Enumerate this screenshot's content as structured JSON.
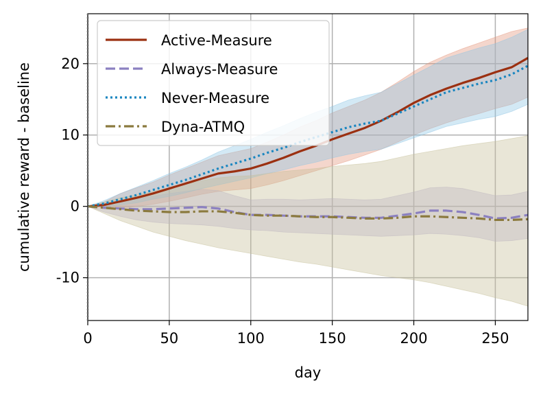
{
  "chart_data": {
    "type": "line",
    "title": "",
    "xlabel": "day",
    "ylabel": "cumulative reward - baseline",
    "xlim": [
      0,
      270
    ],
    "ylim": [
      -16,
      27
    ],
    "xticks": [
      0,
      50,
      100,
      150,
      200,
      250
    ],
    "yticks": [
      -10,
      0,
      10,
      20
    ],
    "grid": true,
    "legend_position": "top-left",
    "x": [
      0,
      10,
      20,
      30,
      40,
      50,
      60,
      70,
      80,
      90,
      100,
      110,
      120,
      130,
      140,
      150,
      160,
      170,
      180,
      190,
      200,
      210,
      220,
      230,
      240,
      250,
      260,
      270
    ],
    "series": [
      {
        "name": "Active-Measure",
        "color": "#9b3011",
        "band_color": "#e3937a",
        "style": "solid",
        "values": [
          0,
          0.2,
          0.7,
          1.2,
          1.8,
          2.5,
          3.2,
          3.9,
          4.6,
          4.9,
          5.3,
          6.0,
          6.8,
          7.7,
          8.5,
          9.4,
          10.2,
          11.0,
          12.0,
          13.2,
          14.5,
          15.6,
          16.5,
          17.3,
          18.0,
          18.8,
          19.5,
          20.8
        ],
        "lower": [
          0,
          -0.2,
          -0.3,
          0,
          0.3,
          0.7,
          1.2,
          1.7,
          2.1,
          2.3,
          2.5,
          3.0,
          3.6,
          4.3,
          5.0,
          5.7,
          6.4,
          7.2,
          8.0,
          9.0,
          10.0,
          10.9,
          11.7,
          12.4,
          13.0,
          13.7,
          14.3,
          15.3
        ],
        "upper": [
          0,
          0.6,
          1.8,
          2.6,
          3.4,
          4.4,
          5.3,
          6.2,
          7.1,
          7.6,
          8.1,
          9.0,
          10.0,
          11.1,
          12.0,
          13.1,
          14.0,
          14.9,
          16.0,
          17.4,
          18.9,
          20.2,
          21.2,
          22.1,
          22.9,
          23.7,
          24.5,
          25.0
        ]
      },
      {
        "name": "Always-Measure",
        "color": "#8b80c0",
        "band_color": "#b8b0d8",
        "style": "dashed",
        "values": [
          0,
          -0.2,
          -0.3,
          -0.4,
          -0.4,
          -0.3,
          -0.2,
          -0.1,
          -0.3,
          -0.8,
          -1.2,
          -1.2,
          -1.3,
          -1.4,
          -1.4,
          -1.4,
          -1.5,
          -1.6,
          -1.6,
          -1.3,
          -1.0,
          -0.6,
          -0.6,
          -0.8,
          -1.2,
          -1.7,
          -1.6,
          -1.2
        ],
        "lower": [
          0,
          -0.8,
          -1.4,
          -1.9,
          -2.2,
          -2.4,
          -2.5,
          -2.6,
          -2.8,
          -3.1,
          -3.3,
          -3.4,
          -3.6,
          -3.7,
          -3.8,
          -3.9,
          -4.0,
          -4.1,
          -4.2,
          -4.1,
          -4.0,
          -3.8,
          -3.9,
          -4.1,
          -4.4,
          -4.9,
          -4.8,
          -4.5
        ],
        "upper": [
          0,
          0.4,
          0.8,
          1.1,
          1.4,
          1.8,
          2.1,
          2.4,
          2.2,
          1.5,
          0.9,
          1.0,
          1.0,
          0.9,
          1.0,
          1.1,
          1.0,
          0.9,
          1.0,
          1.5,
          2.0,
          2.6,
          2.7,
          2.5,
          2.0,
          1.5,
          1.6,
          2.1
        ]
      },
      {
        "name": "Never-Measure",
        "color": "#1a86c0",
        "band_color": "#8cc4e4",
        "style": "dotted",
        "values": [
          0,
          0.4,
          1.0,
          1.6,
          2.3,
          3.0,
          3.7,
          4.5,
          5.3,
          6.0,
          6.7,
          7.5,
          8.2,
          9.0,
          9.7,
          10.4,
          11.1,
          11.6,
          12.0,
          13.0,
          14.0,
          15.0,
          16.0,
          16.6,
          17.2,
          17.7,
          18.5,
          19.7
        ],
        "lower": [
          0,
          0,
          0.2,
          0.5,
          1.0,
          1.4,
          1.9,
          2.5,
          3.0,
          3.5,
          4.0,
          4.6,
          5.1,
          5.7,
          6.2,
          6.8,
          7.3,
          7.7,
          8.0,
          8.8,
          9.6,
          10.4,
          11.2,
          11.7,
          12.2,
          12.6,
          13.3,
          14.3
        ],
        "upper": [
          0,
          0.8,
          1.8,
          2.7,
          3.6,
          4.6,
          5.5,
          6.5,
          7.6,
          8.5,
          9.4,
          10.4,
          11.3,
          12.3,
          13.2,
          14.0,
          14.9,
          15.5,
          16.0,
          17.2,
          18.4,
          19.6,
          20.8,
          21.5,
          22.2,
          22.8,
          23.7,
          24.8
        ]
      },
      {
        "name": "Dyna-ATMQ",
        "color": "#8b7a3e",
        "band_color": "#c4bd96",
        "style": "dashdot",
        "values": [
          0,
          -0.2,
          -0.4,
          -0.6,
          -0.7,
          -0.8,
          -0.8,
          -0.7,
          -0.7,
          -0.9,
          -1.2,
          -1.3,
          -1.3,
          -1.4,
          -1.5,
          -1.5,
          -1.6,
          -1.7,
          -1.7,
          -1.6,
          -1.4,
          -1.4,
          -1.5,
          -1.6,
          -1.7,
          -1.9,
          -1.9,
          -1.8
        ],
        "lower": [
          0,
          -1.0,
          -2.0,
          -2.8,
          -3.6,
          -4.2,
          -4.8,
          -5.3,
          -5.8,
          -6.2,
          -6.6,
          -7.0,
          -7.4,
          -7.8,
          -8.1,
          -8.5,
          -8.9,
          -9.3,
          -9.7,
          -10.0,
          -10.3,
          -10.7,
          -11.2,
          -11.7,
          -12.2,
          -12.8,
          -13.3,
          -14.0
        ],
        "upper": [
          0,
          0.6,
          1.2,
          1.6,
          2.1,
          2.6,
          3.1,
          3.6,
          4.0,
          4.2,
          4.3,
          4.6,
          4.9,
          5.1,
          5.3,
          5.6,
          5.8,
          6.0,
          6.3,
          6.8,
          7.3,
          7.7,
          8.1,
          8.5,
          8.8,
          9.1,
          9.5,
          9.9
        ]
      }
    ]
  }
}
